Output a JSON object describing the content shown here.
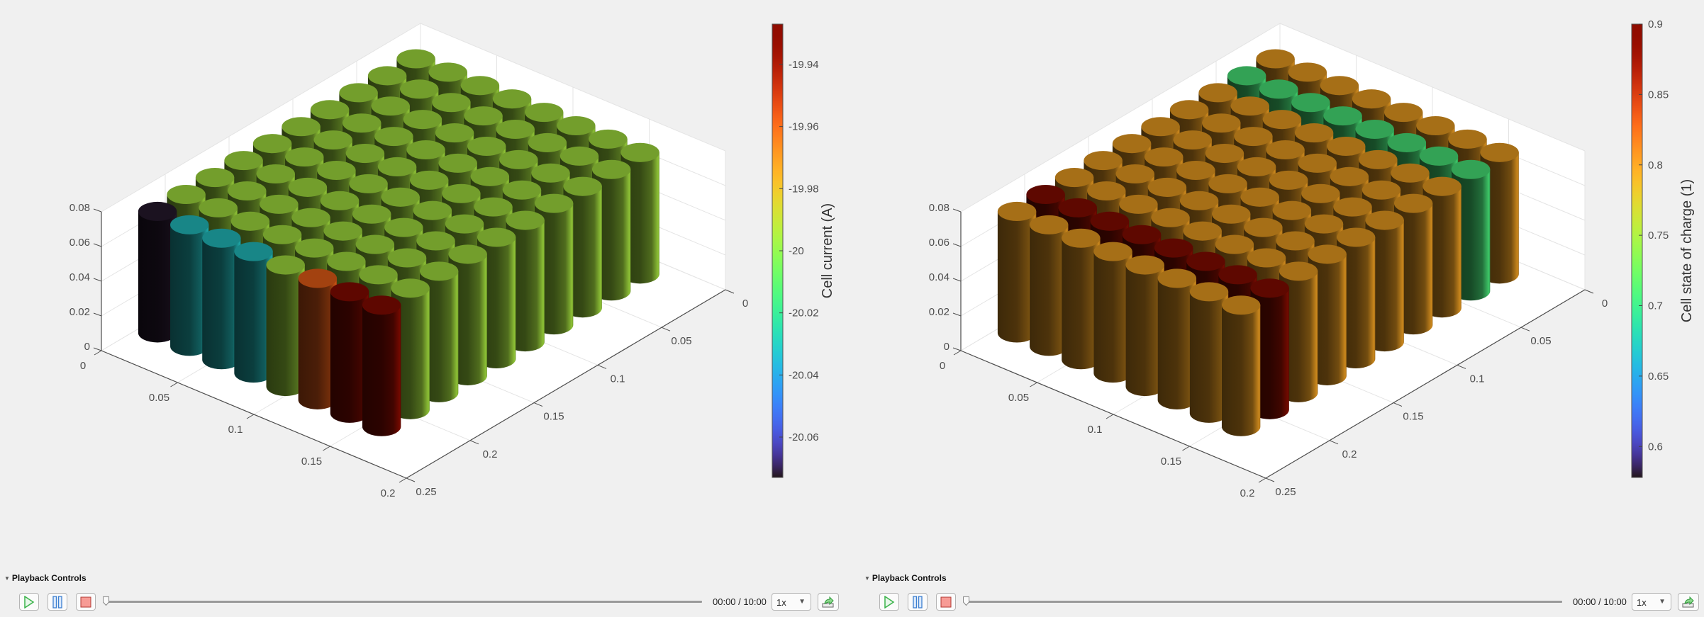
{
  "chart_data": [
    {
      "type": "bar3-cylinders",
      "colormap": "turbo",
      "colorbar": {
        "label": "Cell current (A)",
        "ticks": [
          "-19.94",
          "-19.96",
          "-19.98",
          "-20",
          "-20.02",
          "-20.04",
          "-20.06"
        ],
        "tick_values": [
          -19.94,
          -19.96,
          -19.98,
          -20,
          -20.02,
          -20.04,
          -20.06
        ],
        "clim": [
          -20.073,
          -19.927
        ]
      },
      "x_ticks": [
        "0",
        "0.05",
        "0.1",
        "0.15",
        "0.2"
      ],
      "x_tick_values": [
        0,
        0.05,
        0.1,
        0.15,
        0.2
      ],
      "y_ticks": [
        "0",
        "0.05",
        "0.1",
        "0.15",
        "0.2",
        "0.25"
      ],
      "y_tick_values": [
        0,
        0.05,
        0.1,
        0.15,
        0.2,
        0.25
      ],
      "z_ticks": [
        "0",
        "0.02",
        "0.04",
        "0.06",
        "0.08"
      ],
      "z_tick_values": [
        0,
        0.02,
        0.04,
        0.06,
        0.08
      ],
      "xlim": [
        0,
        0.2
      ],
      "ylim": [
        0,
        0.25
      ],
      "zlim": [
        0,
        0.08
      ],
      "grid": true,
      "cylinder_height": 0.07,
      "x_centers": [
        0.01,
        0.031,
        0.052,
        0.073,
        0.094,
        0.115,
        0.136,
        0.157
      ],
      "y_centers": [
        0.218,
        0.1955,
        0.173,
        0.1505,
        0.128,
        0.1055,
        0.083,
        0.0605,
        0.038,
        0.0155
      ],
      "values": [
        [
          -20.072,
          -20.032,
          -20.032,
          -20.032,
          -19.995,
          -19.958,
          -19.93,
          -19.93
        ],
        [
          -19.995,
          -19.995,
          -19.995,
          -19.995,
          -19.995,
          -19.995,
          -19.995,
          -19.995
        ],
        [
          -19.995,
          -19.995,
          -19.995,
          -19.995,
          -19.995,
          -19.995,
          -19.995,
          -19.995
        ],
        [
          -19.995,
          -19.995,
          -19.995,
          -19.995,
          -19.995,
          -19.995,
          -19.995,
          -19.995
        ],
        [
          -19.995,
          -19.995,
          -19.995,
          -19.995,
          -19.995,
          -19.995,
          -19.995,
          -19.995
        ],
        [
          -19.995,
          -19.995,
          -19.995,
          -19.995,
          -19.995,
          -19.995,
          -19.995,
          -19.995
        ],
        [
          -19.995,
          -19.995,
          -19.995,
          -19.995,
          -19.995,
          -19.995,
          -19.995,
          -19.995
        ],
        [
          -19.995,
          -19.995,
          -19.995,
          -19.995,
          -19.995,
          -19.995,
          -19.995,
          -19.995
        ],
        [
          -19.995,
          -19.995,
          -19.995,
          -19.995,
          -19.995,
          -19.995,
          -19.995,
          -19.995
        ],
        [
          -19.995,
          -19.995,
          -19.995,
          -19.995,
          -19.995,
          -19.995,
          -19.995,
          -19.995
        ]
      ]
    },
    {
      "type": "bar3-cylinders",
      "colormap": "turbo",
      "colorbar": {
        "label": "Cell state of charge (1)",
        "ticks": [
          "0.9",
          "0.85",
          "0.8",
          "0.75",
          "0.7",
          "0.65",
          "0.6"
        ],
        "tick_values": [
          0.9,
          0.85,
          0.8,
          0.75,
          0.7,
          0.65,
          0.6
        ],
        "clim": [
          0.578,
          0.9
        ]
      },
      "x_ticks": [
        "0",
        "0.05",
        "0.1",
        "0.15",
        "0.2"
      ],
      "x_tick_values": [
        0,
        0.05,
        0.1,
        0.15,
        0.2
      ],
      "y_ticks": [
        "0",
        "0.05",
        "0.1",
        "0.15",
        "0.2",
        "0.25"
      ],
      "y_tick_values": [
        0,
        0.05,
        0.1,
        0.15,
        0.2,
        0.25
      ],
      "z_ticks": [
        "0",
        "0.02",
        "0.04",
        "0.06",
        "0.08"
      ],
      "z_tick_values": [
        0,
        0.02,
        0.04,
        0.06,
        0.08
      ],
      "xlim": [
        0,
        0.2
      ],
      "ylim": [
        0,
        0.25
      ],
      "zlim": [
        0,
        0.08
      ],
      "grid": true,
      "cylinder_height": 0.07,
      "x_centers": [
        0.01,
        0.031,
        0.052,
        0.073,
        0.094,
        0.115,
        0.136,
        0.157
      ],
      "y_centers": [
        0.218,
        0.1955,
        0.173,
        0.1505,
        0.128,
        0.1055,
        0.083,
        0.0605,
        0.038,
        0.0155
      ],
      "values": [
        [
          0.8,
          0.8,
          0.8,
          0.8,
          0.8,
          0.8,
          0.8,
          0.8
        ],
        [
          0.9,
          0.9,
          0.9,
          0.9,
          0.9,
          0.9,
          0.9,
          0.9
        ],
        [
          0.8,
          0.8,
          0.8,
          0.8,
          0.8,
          0.8,
          0.8,
          0.8
        ],
        [
          0.8,
          0.8,
          0.8,
          0.8,
          0.8,
          0.8,
          0.8,
          0.8
        ],
        [
          0.8,
          0.8,
          0.8,
          0.8,
          0.8,
          0.8,
          0.8,
          0.8
        ],
        [
          0.8,
          0.8,
          0.8,
          0.8,
          0.8,
          0.8,
          0.8,
          0.8
        ],
        [
          0.8,
          0.8,
          0.8,
          0.8,
          0.8,
          0.8,
          0.8,
          0.8
        ],
        [
          0.8,
          0.8,
          0.8,
          0.8,
          0.8,
          0.8,
          0.8,
          0.8
        ],
        [
          0.707,
          0.707,
          0.707,
          0.707,
          0.707,
          0.707,
          0.707,
          0.707
        ],
        [
          0.8,
          0.8,
          0.8,
          0.8,
          0.8,
          0.8,
          0.8,
          0.8
        ]
      ]
    }
  ],
  "playback": [
    {
      "title": "Playback Controls",
      "time": "00:00 / 10:00",
      "speed": "1x",
      "progress": 0,
      "icons": {
        "play": "play-icon",
        "pause": "pause-icon",
        "stop": "stop-icon",
        "export": "export-icon"
      }
    },
    {
      "title": "Playback Controls",
      "time": "00:00 / 10:00",
      "speed": "1x",
      "progress": 0,
      "icons": {
        "play": "play-icon",
        "pause": "pause-icon",
        "stop": "stop-icon",
        "export": "export-icon"
      }
    }
  ],
  "colors": {
    "background": "#f0f0f0",
    "axes": "#ffffff",
    "grid": "#e4e4e4",
    "axis_line": "#4d4d4d",
    "play": "#3bb34a",
    "pause": "#3c7fd0",
    "stop": "#f28b82"
  }
}
